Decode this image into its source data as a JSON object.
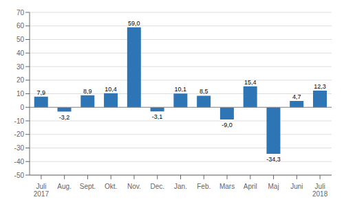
{
  "chart_data": {
    "type": "bar",
    "categories": [
      "Juli\n2017",
      "Aug.",
      "Sept.",
      "Okt.",
      "Nov.",
      "Dec.",
      "Jan.",
      "Feb.",
      "Mars",
      "April",
      "Maj",
      "Juni",
      "Juli\n2018"
    ],
    "values": [
      7.9,
      -3.2,
      8.9,
      10.4,
      59.0,
      -3.1,
      10.1,
      8.5,
      -9.0,
      15.4,
      -34.3,
      4.7,
      12.3
    ],
    "value_labels": [
      "7,9",
      "-3,2",
      "8,9",
      "10,4",
      "59,0",
      "-3,1",
      "10,1",
      "8,5",
      "-9,0",
      "15,4",
      "-34,3",
      "4,7",
      "12,3"
    ],
    "color": "#2E75B6",
    "ylim": [
      -50,
      70
    ],
    "yticks": [
      -50,
      -40,
      -30,
      -20,
      -10,
      0,
      10,
      20,
      30,
      40,
      50,
      60,
      70
    ],
    "grid": true,
    "data_labels": true
  }
}
